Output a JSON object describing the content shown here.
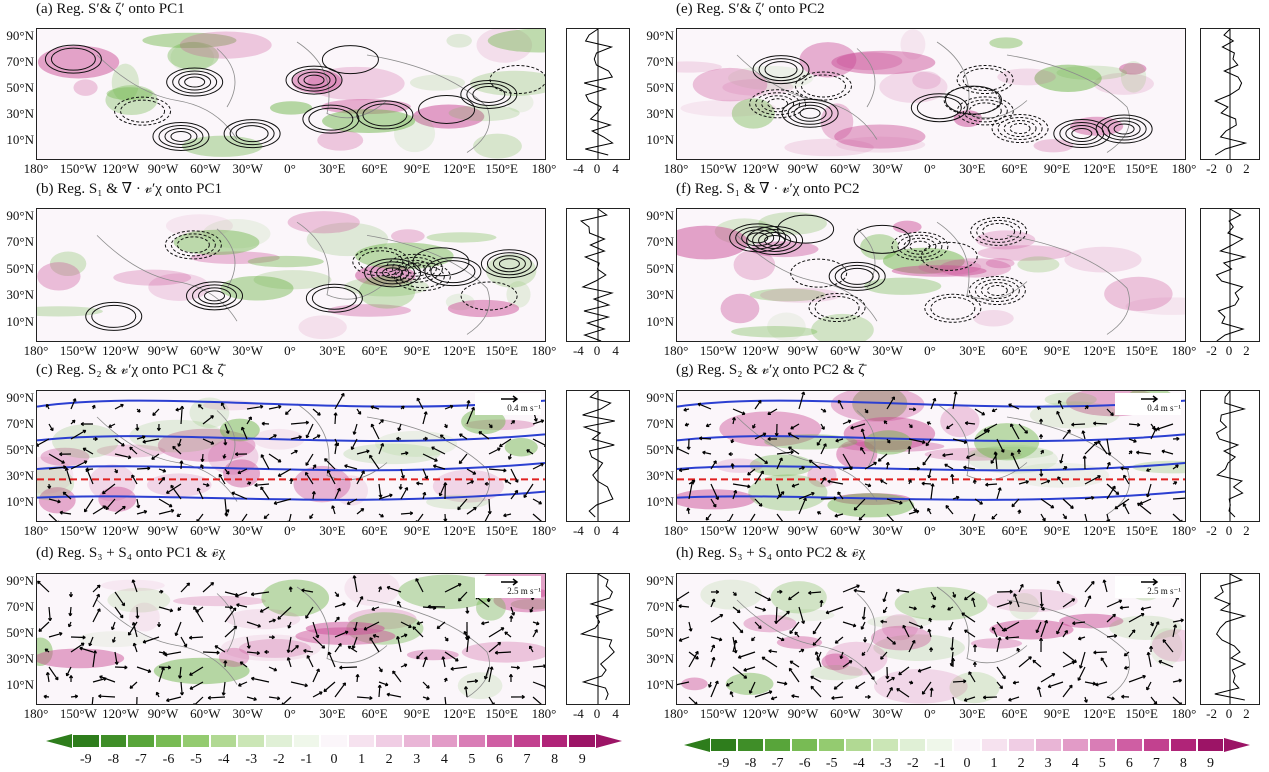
{
  "panels": [
    {
      "id": "a",
      "title": "(a) Reg. S′& ζ′ onto PC1",
      "side_ticks": [
        "-4",
        "0",
        "4"
      ],
      "overlay": "contour",
      "ref_arrow": ""
    },
    {
      "id": "b",
      "title": "(b) Reg. S₁ & ∇ · 𝓋′χ onto PC1",
      "side_ticks": [
        "-4",
        "0",
        "4"
      ],
      "overlay": "contour",
      "ref_arrow": ""
    },
    {
      "id": "c",
      "title": "(c) Reg. S₂ & 𝓋′χ onto PC1 & ζ̄",
      "side_ticks": [
        "-4",
        "0",
        "4"
      ],
      "overlay": "vector",
      "ref_arrow": "0.4 m s⁻¹"
    },
    {
      "id": "d",
      "title": "(d) Reg. S₃ + S₄ onto PC1 & 𝓋̄χ",
      "side_ticks": [
        "-4",
        "0",
        "4"
      ],
      "overlay": "vector",
      "ref_arrow": "2.5 m s⁻¹"
    },
    {
      "id": "e",
      "title": "(e) Reg. S′& ζ′ onto PC2",
      "side_ticks": [
        "-2",
        "0",
        "2"
      ],
      "overlay": "contour",
      "ref_arrow": ""
    },
    {
      "id": "f",
      "title": "(f) Reg. S₁ & ∇ · 𝓋′χ onto PC2",
      "side_ticks": [
        "-2",
        "0",
        "2"
      ],
      "overlay": "contour",
      "ref_arrow": ""
    },
    {
      "id": "g",
      "title": "(g) Reg. S₂ & 𝓋′χ onto PC2 & ζ̄",
      "side_ticks": [
        "-2",
        "0",
        "2"
      ],
      "overlay": "vector",
      "ref_arrow": "0.4 m s⁻¹"
    },
    {
      "id": "h",
      "title": "(h) Reg. S₃ + S₄ onto PC2 & 𝓋̄χ",
      "side_ticks": [
        "-2",
        "0",
        "2"
      ],
      "overlay": "vector",
      "ref_arrow": "2.5 m s⁻¹"
    }
  ],
  "lat_labels": [
    "90°N",
    "70°N",
    "50°N",
    "30°N",
    "10°N"
  ],
  "lon_labels": [
    "180°",
    "150°W",
    "120°W",
    "90°W",
    "60°W",
    "30°W",
    "0°",
    "30°E",
    "60°E",
    "90°E",
    "120°E",
    "150°E",
    "180°"
  ],
  "colorbar": {
    "ticks": [
      "-9",
      "-8",
      "-7",
      "-6",
      "-5",
      "-4",
      "-3",
      "-2",
      "-1",
      "0",
      "1",
      "2",
      "3",
      "4",
      "5",
      "6",
      "7",
      "8",
      "9"
    ],
    "colors": [
      "#2e7d1c",
      "#3f8e28",
      "#58a53a",
      "#78bb54",
      "#94cb70",
      "#b1d993",
      "#cbe6b6",
      "#e0f0d6",
      "#eff7ea",
      "#fbf6fa",
      "#f6e2ef",
      "#f0cde4",
      "#e9b5d6",
      "#e29bc7",
      "#d97db6",
      "#cf5ea3",
      "#c2418f",
      "#b02478",
      "#9c1466"
    ]
  }
}
